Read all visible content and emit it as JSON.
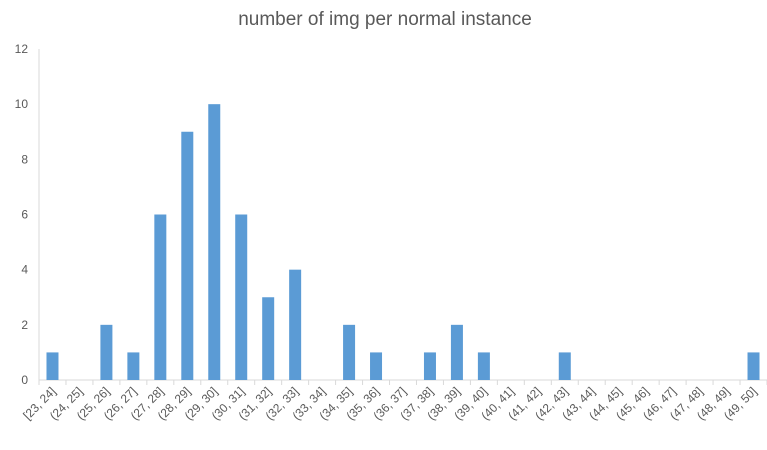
{
  "chart_data": {
    "type": "bar",
    "title": "number of img per normal instance",
    "xlabel": "",
    "ylabel": "",
    "ylim": [
      0,
      12
    ],
    "yticks": [
      0,
      2,
      4,
      6,
      8,
      10,
      12
    ],
    "grid": false,
    "legend": "none",
    "bar_color": "#5b9bd5",
    "categories": [
      "[23, 24]",
      "(24, 25]",
      "(25, 26]",
      "(26, 27]",
      "(27, 28]",
      "(28, 29]",
      "(29, 30]",
      "(30, 31]",
      "(31, 32]",
      "(32, 33]",
      "(33, 34]",
      "(34, 35]",
      "(35, 36]",
      "(36, 37]",
      "(37, 38]",
      "(38, 39]",
      "(39, 40]",
      "(40, 41]",
      "(41, 42]",
      "(42, 43]",
      "(43, 44]",
      "(44, 45]",
      "(45, 46]",
      "(46, 47]",
      "(47, 48]",
      "(48, 49]",
      "(49, 50]"
    ],
    "values": [
      1,
      0,
      2,
      1,
      6,
      9,
      10,
      6,
      3,
      4,
      0,
      2,
      1,
      0,
      1,
      2,
      1,
      0,
      0,
      1,
      0,
      0,
      0,
      0,
      0,
      0,
      1
    ]
  }
}
